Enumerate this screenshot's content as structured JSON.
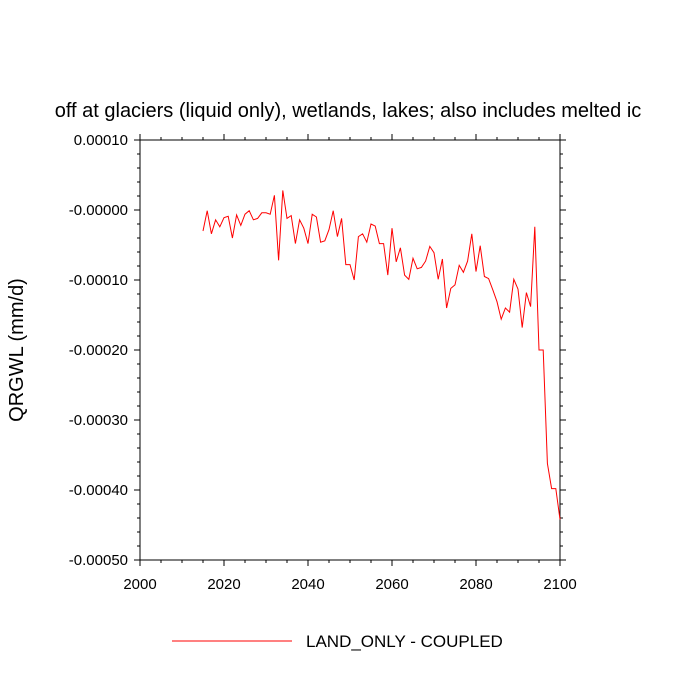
{
  "chart_data": {
    "type": "line",
    "title": "off at glaciers (liquid only), wetlands, lakes; also includes melted ic",
    "xlabel": "",
    "ylabel": "QRGWL  (mm/d)",
    "xlim": [
      2000,
      2100
    ],
    "ylim": [
      -0.0005,
      0.0001
    ],
    "x_ticks": [
      2000,
      2020,
      2040,
      2060,
      2080,
      2100
    ],
    "x_tick_labels": [
      "2000",
      "2020",
      "2040",
      "2060",
      "2080",
      "2100"
    ],
    "y_ticks": [
      0.0001,
      0.0,
      -0.0001,
      -0.0002,
      -0.0003,
      -0.0004,
      -0.0005
    ],
    "y_tick_labels": [
      "0.00010",
      "-0.00000",
      "-0.00010",
      "-0.00020",
      "-0.00030",
      "-0.00040",
      "-0.00050"
    ],
    "grid": false,
    "legend_position": "bottom",
    "series": [
      {
        "name": "LAND_ONLY - COUPLED",
        "color": "#ff0000",
        "x": [
          2015,
          2016,
          2017,
          2018,
          2019,
          2020,
          2021,
          2022,
          2023,
          2024,
          2025,
          2026,
          2027,
          2028,
          2029,
          2030,
          2031,
          2032,
          2033,
          2034,
          2035,
          2036,
          2037,
          2038,
          2039,
          2040,
          2041,
          2042,
          2043,
          2044,
          2045,
          2046,
          2047,
          2048,
          2049,
          2050,
          2051,
          2052,
          2053,
          2054,
          2055,
          2056,
          2057,
          2058,
          2059,
          2060,
          2061,
          2062,
          2063,
          2064,
          2065,
          2066,
          2067,
          2068,
          2069,
          2070,
          2071,
          2072,
          2073,
          2074,
          2075,
          2076,
          2077,
          2078,
          2079,
          2080,
          2081,
          2082,
          2083,
          2084,
          2085,
          2086,
          2087,
          2088,
          2089,
          2090,
          2091,
          2092,
          2093,
          2094,
          2095,
          2096,
          2097,
          2098,
          2099,
          2100
        ],
        "y": [
          -3e-05,
          -1e-06,
          -3.4e-05,
          -1.4e-05,
          -2.4e-05,
          -1.1e-05,
          -9e-06,
          -4e-05,
          -7e-06,
          -2.2e-05,
          -6e-06,
          -1e-06,
          -1.4e-05,
          -1.2e-05,
          -4e-06,
          -4e-06,
          -6e-06,
          2.1e-05,
          -7.2e-05,
          2.8e-05,
          -1.2e-05,
          -8e-06,
          -4.8e-05,
          -1.4e-05,
          -2.6e-05,
          -4.8e-05,
          -6e-06,
          -1e-05,
          -4.6e-05,
          -4.4e-05,
          -2.8e-05,
          -1e-06,
          -3.8e-05,
          -1.2e-05,
          -7.8e-05,
          -7.8e-05,
          -0.0001,
          -3.8e-05,
          -3.4e-05,
          -4.6e-05,
          -2e-05,
          -2.3e-05,
          -4.8e-05,
          -4.8e-05,
          -9.3e-05,
          -2.6e-05,
          -7.4e-05,
          -5.4e-05,
          -9.3e-05,
          -9.9e-05,
          -6.9e-05,
          -8.4e-05,
          -8.2e-05,
          -7.3e-05,
          -5.2e-05,
          -6.1e-05,
          -9.9e-05,
          -7e-05,
          -0.00014,
          -0.000112,
          -0.000107,
          -7.9e-05,
          -8.9e-05,
          -7.3e-05,
          -3.4e-05,
          -8.8e-05,
          -5.1e-05,
          -9.5e-05,
          -9.8e-05,
          -0.000114,
          -0.000131,
          -0.000156,
          -0.00014,
          -0.000146,
          -9.9e-05,
          -0.000113,
          -0.000168,
          -0.000118,
          -0.000138,
          -2.4e-05,
          -0.0002,
          -0.0002,
          -0.000362,
          -0.000398,
          -0.000398,
          -0.000442
        ]
      }
    ]
  }
}
